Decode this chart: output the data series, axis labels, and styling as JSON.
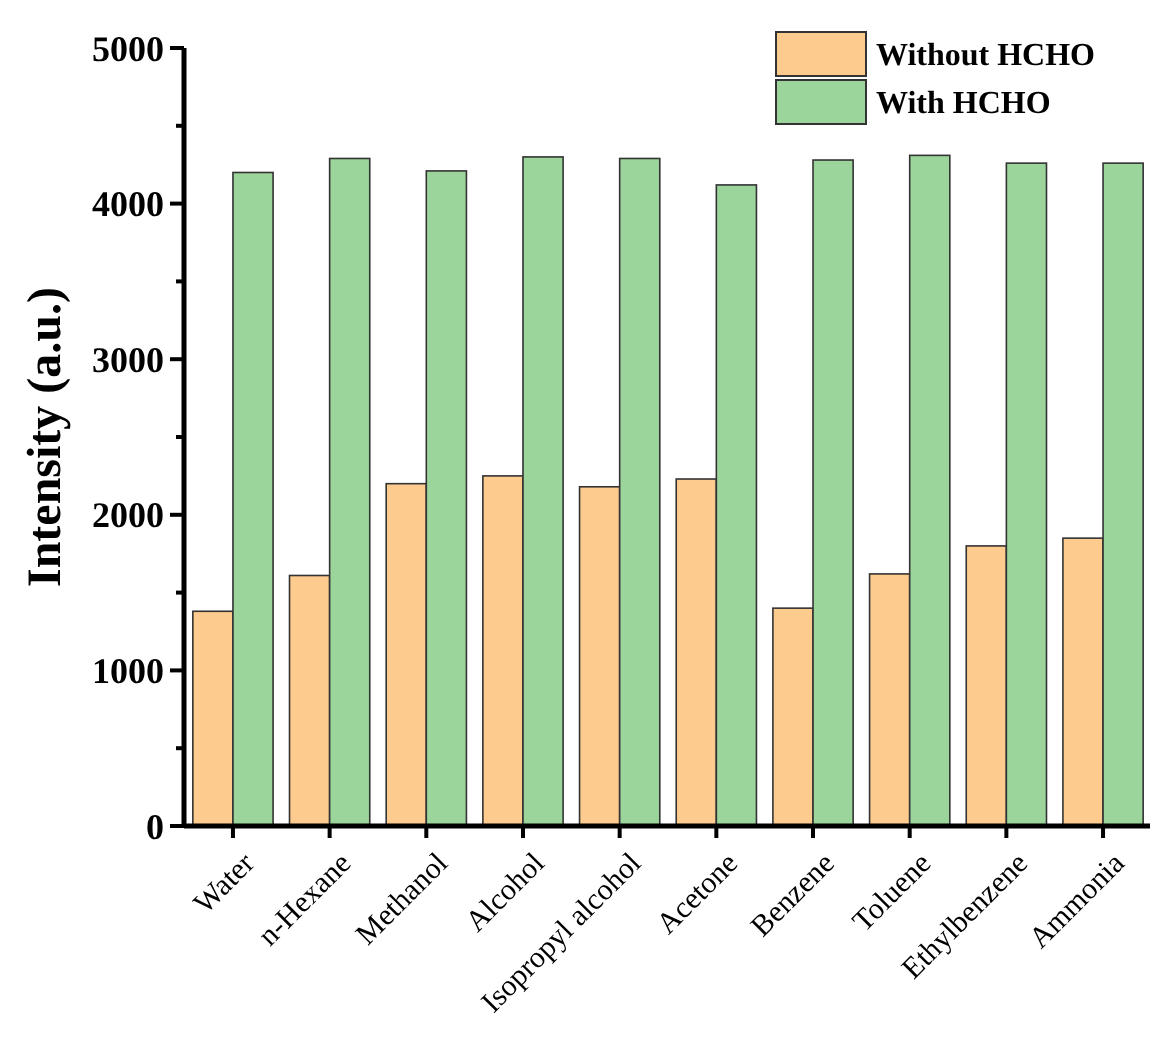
{
  "chart_data": {
    "type": "bar",
    "ylabel": "Intensity (a.u.)",
    "categories": [
      "Water",
      "n-Hexane",
      "Methanol",
      "Alcohol",
      "Isopropyl alcohol",
      "Acetone",
      "Benzene",
      "Toluene",
      "Ethylbenzene",
      "Ammonia"
    ],
    "series": [
      {
        "name": "Without HCHO",
        "color": "#fecb8e",
        "values": [
          1380,
          1610,
          2200,
          2250,
          2180,
          2230,
          1400,
          1620,
          1800,
          1850
        ]
      },
      {
        "name": "With HCHO",
        "color": "#9bd59b",
        "values": [
          4200,
          4290,
          4210,
          4300,
          4290,
          4120,
          4280,
          4310,
          4260,
          4260
        ]
      }
    ],
    "ylim": [
      0,
      5000
    ],
    "yticks": [
      0,
      {
        "value": 500,
        "label": null
      },
      1000,
      {
        "value": 1500,
        "label": null
      },
      2000,
      {
        "value": 2500,
        "label": null
      },
      3000,
      {
        "value": 3500,
        "label": null
      },
      4000,
      {
        "value": 4500,
        "label": null
      },
      5000
    ],
    "legend": "top right"
  }
}
